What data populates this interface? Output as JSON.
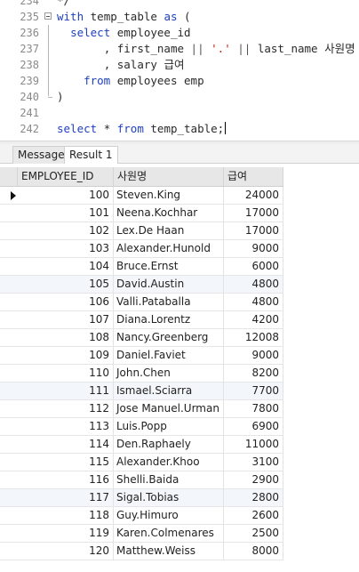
{
  "editor": {
    "lines": [
      {
        "no": "234",
        "text": "*/"
      },
      {
        "no": "235"
      },
      {
        "no": "236"
      },
      {
        "no": "237"
      },
      {
        "no": "238"
      },
      {
        "no": "239"
      },
      {
        "no": "240"
      },
      {
        "no": "241"
      },
      {
        "no": "242"
      }
    ],
    "tok": {
      "with": "with",
      "temp_table": "temp_table",
      "as": "as",
      "lparen": "(",
      "select": "select",
      "employee_id": "employee_id",
      "comma": ",",
      "first_name": "first_name",
      "concat": "||",
      "dot_str": "'.'",
      "last_name": "last_name",
      "alias_name": "사원명",
      "salary": "salary",
      "alias_salary": "급여",
      "from": "from",
      "employees": "employees",
      "emp": "emp",
      "rparen": ")",
      "star": "*",
      "temp_table_end": "temp_table;"
    }
  },
  "tabs": [
    "Message",
    "Result 1"
  ],
  "grid": {
    "columns": [
      "EMPLOYEE_ID",
      "사원명",
      "급여"
    ],
    "rows": [
      [
        "100",
        "Steven.King",
        "24000"
      ],
      [
        "101",
        "Neena.Kochhar",
        "17000"
      ],
      [
        "102",
        "Lex.De Haan",
        "17000"
      ],
      [
        "103",
        "Alexander.Hunold",
        "9000"
      ],
      [
        "104",
        "Bruce.Ernst",
        "6000"
      ],
      [
        "105",
        "David.Austin",
        "4800"
      ],
      [
        "106",
        "Valli.Pataballa",
        "4800"
      ],
      [
        "107",
        "Diana.Lorentz",
        "4200"
      ],
      [
        "108",
        "Nancy.Greenberg",
        "12008"
      ],
      [
        "109",
        "Daniel.Faviet",
        "9000"
      ],
      [
        "110",
        "John.Chen",
        "8200"
      ],
      [
        "111",
        "Ismael.Sciarra",
        "7700"
      ],
      [
        "112",
        "Jose Manuel.Urman",
        "7800"
      ],
      [
        "113",
        "Luis.Popp",
        "6900"
      ],
      [
        "114",
        "Den.Raphaely",
        "11000"
      ],
      [
        "115",
        "Alexander.Khoo",
        "3100"
      ],
      [
        "116",
        "Shelli.Baida",
        "2900"
      ],
      [
        "117",
        "Sigal.Tobias",
        "2800"
      ],
      [
        "118",
        "Guy.Himuro",
        "2600"
      ],
      [
        "119",
        "Karen.Colmenares",
        "2500"
      ],
      [
        "120",
        "Matthew.Weiss",
        "8000"
      ]
    ]
  }
}
